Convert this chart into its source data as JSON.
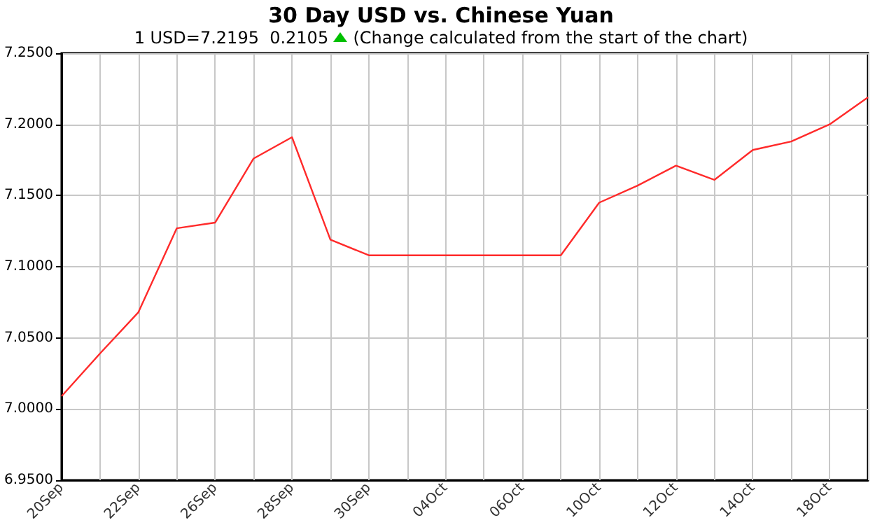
{
  "chart_data": {
    "type": "line",
    "title": "30 Day USD vs. Chinese Yuan",
    "subtitle": "1 USD=7.2195  0.2105",
    "annotations": [
      "(Change calculated from the start of the chart)"
    ],
    "categories": [
      "20Sep",
      null,
      "22Sep",
      null,
      "26Sep",
      null,
      "28Sep",
      null,
      "30Sep",
      null,
      "04Oct",
      null,
      "06Oct",
      null,
      "10Oct",
      null,
      "12Oct",
      null,
      "14Oct",
      null,
      "18Oct",
      null
    ],
    "series": [
      {
        "color": "#ff2a2a",
        "values": [
          7.009,
          7.039,
          7.068,
          7.127,
          7.131,
          7.176,
          7.191,
          7.119,
          7.108,
          7.108,
          7.108,
          7.108,
          7.108,
          7.108,
          7.145,
          7.157,
          7.171,
          7.161,
          7.182,
          7.188,
          7.2,
          7.219
        ]
      }
    ],
    "ylim": [
      6.95,
      7.25
    ],
    "yticks": [
      {
        "value": 6.95,
        "label": "6.9500"
      },
      {
        "value": 7.0,
        "label": "7.0000"
      },
      {
        "value": 7.05,
        "label": "7.0500"
      },
      {
        "value": 7.1,
        "label": "7.1000"
      },
      {
        "value": 7.15,
        "label": "7.1500"
      },
      {
        "value": 7.2,
        "label": "7.2000"
      },
      {
        "value": 7.25,
        "label": "7.2500"
      }
    ],
    "grid": true,
    "marker": "none",
    "line_style": "solid"
  }
}
